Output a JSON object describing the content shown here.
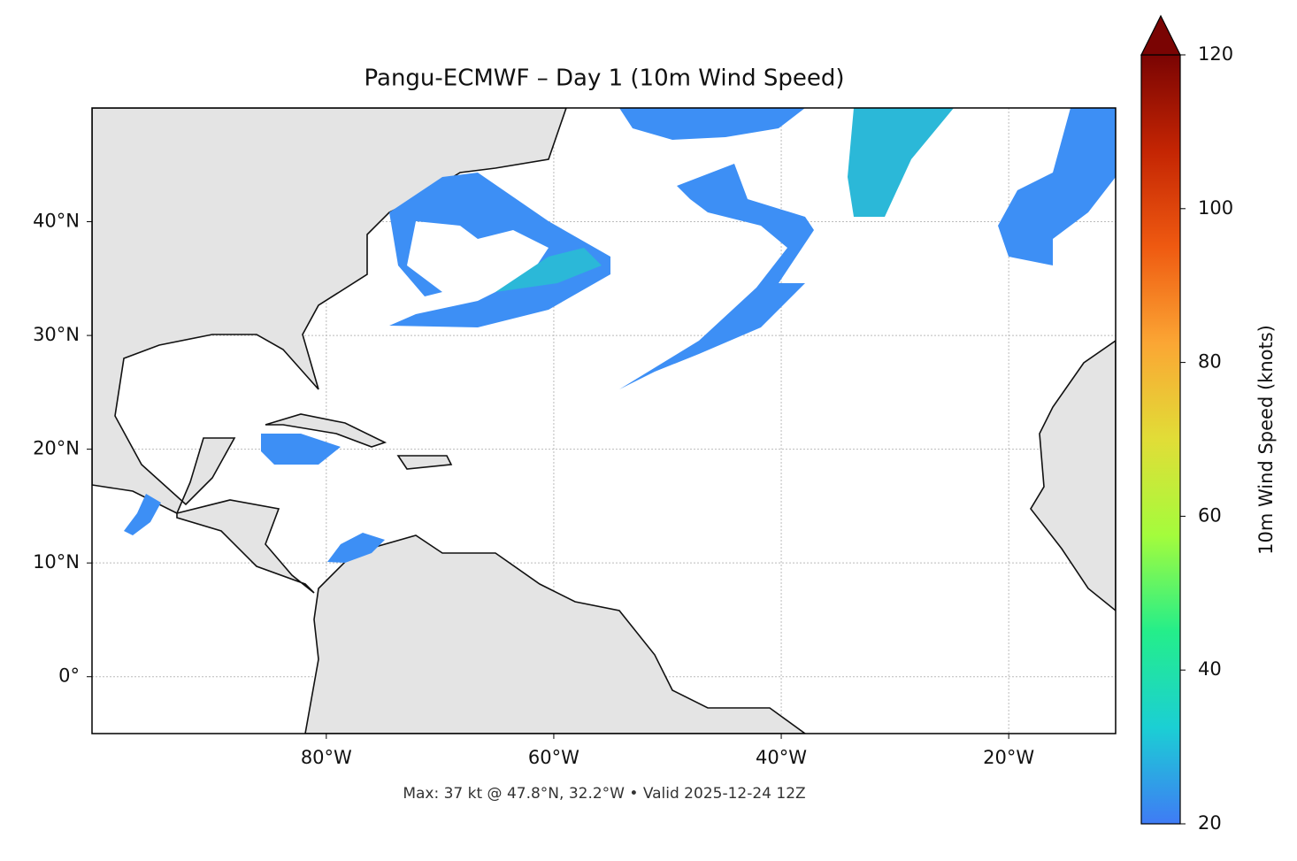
{
  "map": {
    "title": "Pangu-ECMWF – Day 1 (10m Wind Speed)",
    "xlim": [
      -100.6,
      -10.6
    ],
    "ylim": [
      -5,
      50
    ],
    "xticks": [
      {
        "value": -80,
        "label": "80°W"
      },
      {
        "value": -60,
        "label": "60°W"
      },
      {
        "value": -40,
        "label": "40°W"
      },
      {
        "value": -20,
        "label": "20°W"
      }
    ],
    "yticks": [
      {
        "value": 0,
        "label": "0°"
      },
      {
        "value": 10,
        "label": "10°N"
      },
      {
        "value": 20,
        "label": "20°N"
      },
      {
        "value": 30,
        "label": "30°N"
      },
      {
        "value": 40,
        "label": "40°N"
      }
    ],
    "grid": true,
    "colorbar": {
      "label": "10m Wind Speed (knots)",
      "lim": [
        20,
        120
      ],
      "ticks": [
        20,
        40,
        60,
        80,
        100,
        120
      ],
      "colors": [
        "#3f7bf5",
        "#1bcfd4",
        "#24ee8a",
        "#a4fc3c",
        "#e1dd37",
        "#fba634",
        "#ef5a11",
        "#c42503",
        "#7a0403"
      ]
    },
    "footer": "Max: 37 kt @ 47.8°N, 32.2°W • Valid 2025-12-24 12Z"
  }
}
